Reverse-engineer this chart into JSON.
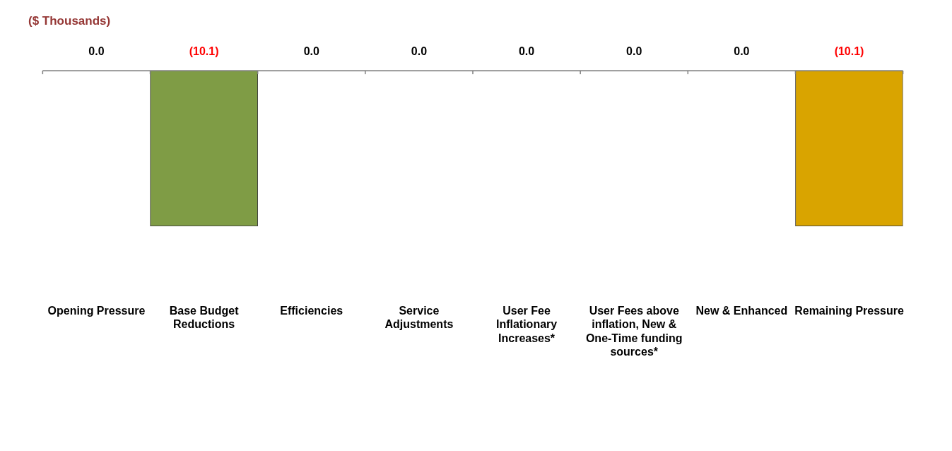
{
  "chart_data": {
    "type": "bar",
    "categories": [
      "Opening Pressure",
      "Base Budget Reductions",
      "Efficiencies",
      "Service Adjustments",
      "User Fee Inflationary Increases*",
      "User Fees above inflation, New & One-Time funding sources*",
      "New & Enhanced",
      "Remaining Pressure"
    ],
    "values": [
      0,
      -10.1,
      0,
      0,
      0,
      0,
      0,
      -10.1
    ],
    "colors": [
      "#7f9c45",
      "#7f9c45",
      "#7f9c45",
      "#7f9c45",
      "#7f9c45",
      "#7f9c45",
      "#7f9c45",
      "#d9a400"
    ],
    "value_labels": [
      "0.0",
      "(10.1)",
      "0.0",
      "0.0",
      "0.0",
      "0.0",
      "0.0",
      "(10.1)"
    ],
    "annotations": [
      "($ Thousands)"
    ],
    "legend": false,
    "grid": false
  }
}
